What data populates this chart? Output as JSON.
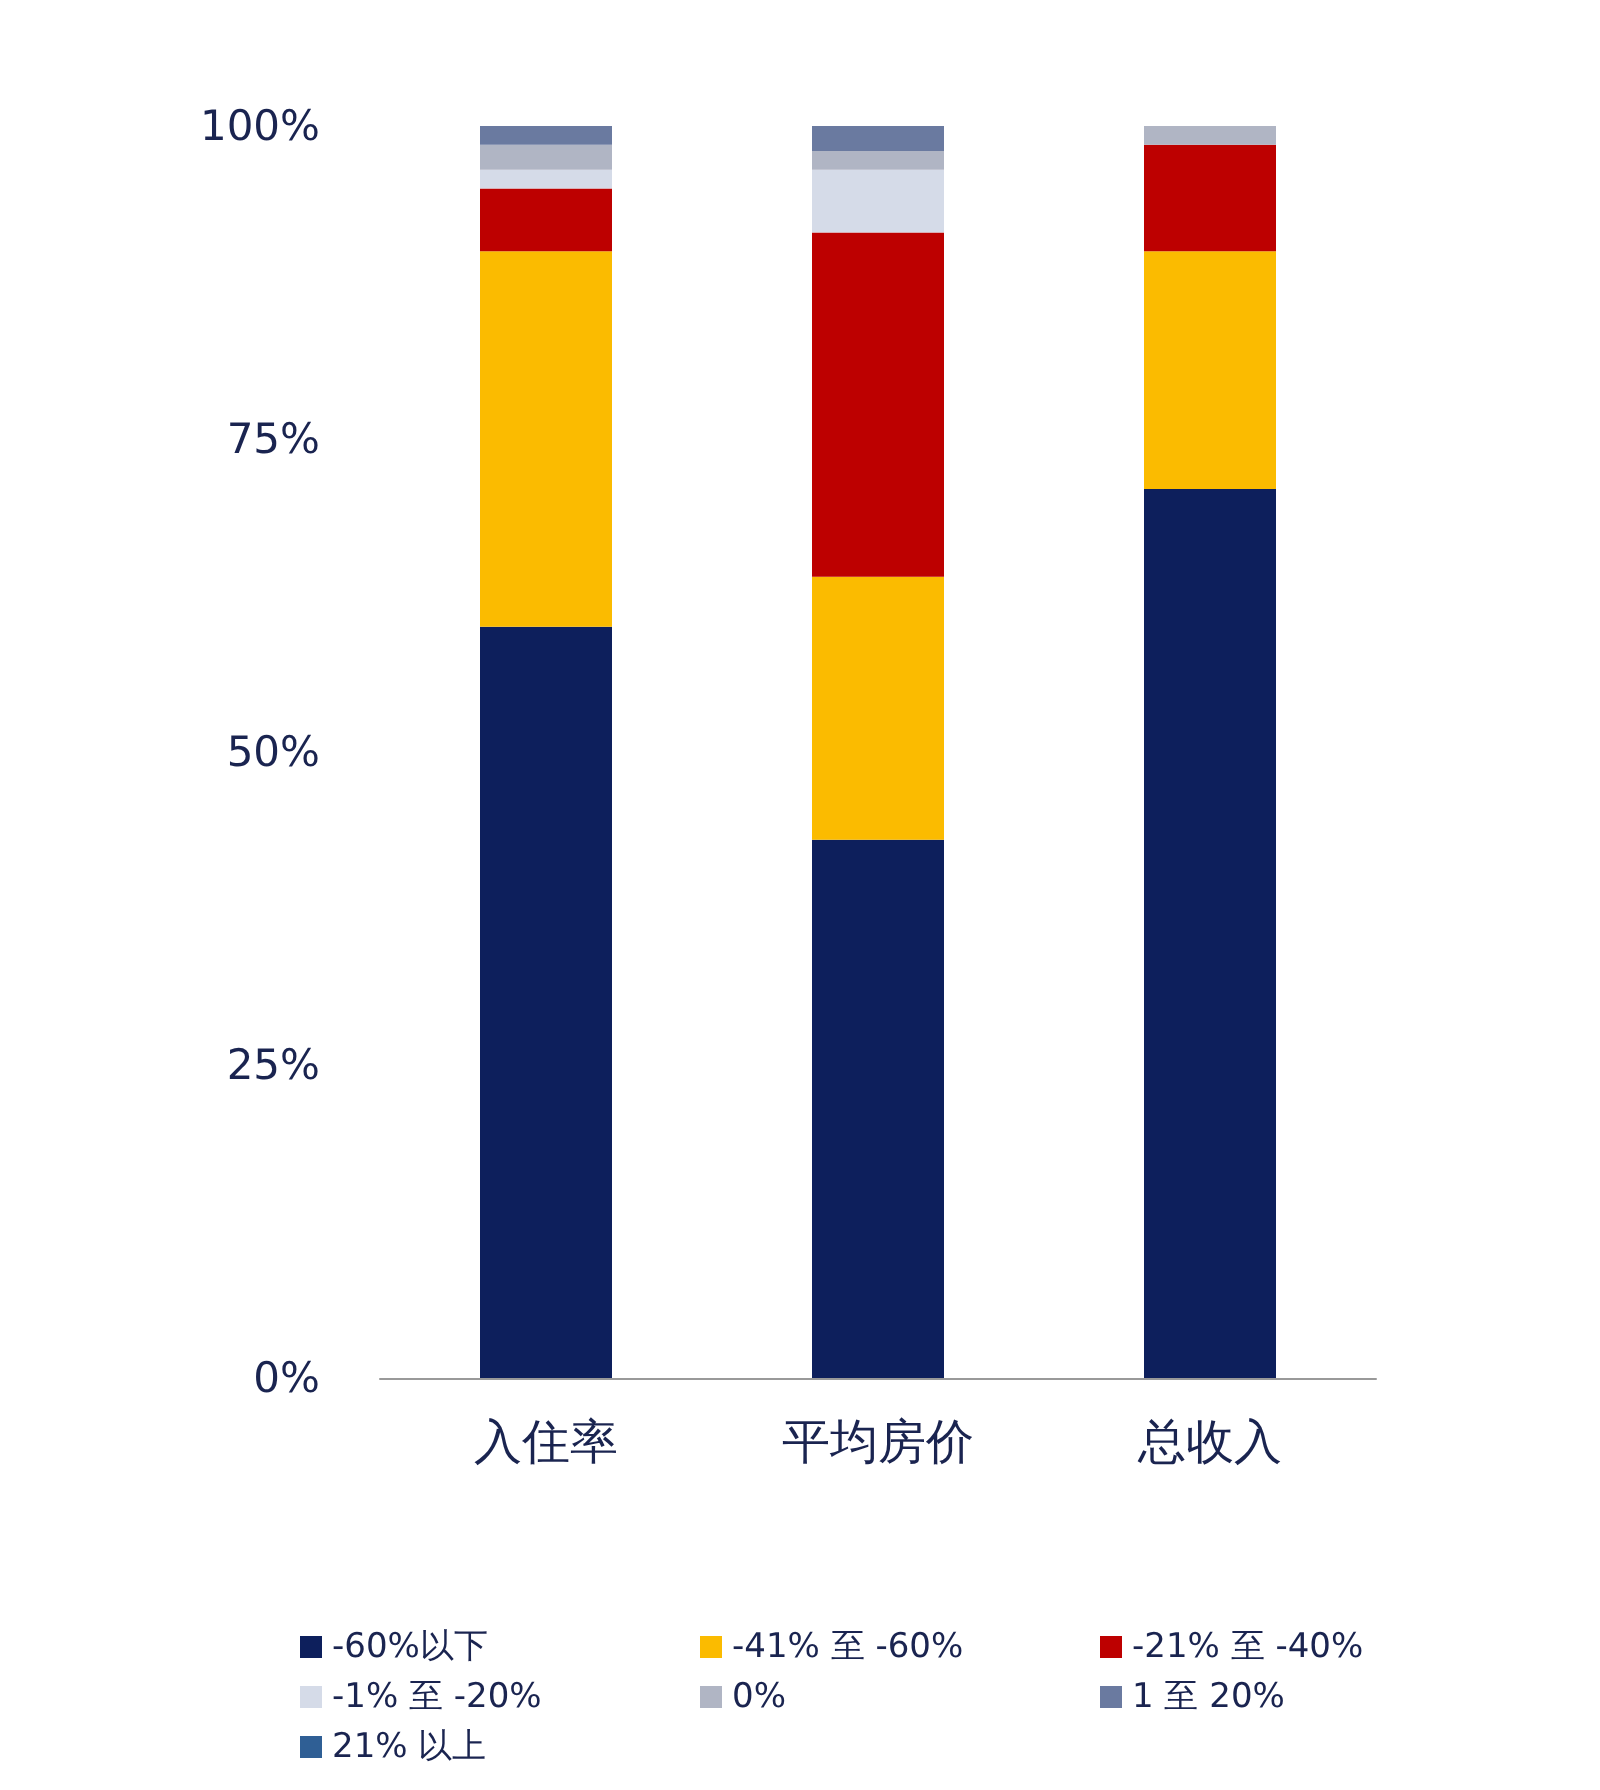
{
  "chart_data": {
    "type": "bar",
    "stacked": true,
    "categories": [
      "入住率",
      "平均房价",
      "总收入"
    ],
    "series": [
      {
        "name": "-60%以下",
        "color": "#0d1f5c",
        "values": [
          60,
          43,
          71
        ]
      },
      {
        "name": "-41% 至 -60%",
        "color": "#fbbb00",
        "values": [
          30,
          21,
          19
        ]
      },
      {
        "name": "-21% 至 -40%",
        "color": "#bd0000",
        "values": [
          5,
          27.5,
          8.5
        ]
      },
      {
        "name": "-1% 至 -20%",
        "color": "#d5dbe8",
        "values": [
          1.5,
          5,
          0
        ]
      },
      {
        "name": "0%",
        "color": "#b0b5c4",
        "values": [
          2,
          1.5,
          1.5
        ]
      },
      {
        "name": "1 至 20%",
        "color": "#6a7aa0",
        "values": [
          1.5,
          2,
          0
        ]
      },
      {
        "name": "21% 以上",
        "color": "#2f5f95",
        "values": [
          0,
          0,
          0
        ]
      }
    ],
    "ylim": [
      0,
      100
    ],
    "yticks": [
      {
        "value": 0,
        "label": "0%"
      },
      {
        "value": 25,
        "label": "25%"
      },
      {
        "value": 50,
        "label": "50%"
      },
      {
        "value": 75,
        "label": "75%"
      },
      {
        "value": 100,
        "label": "100%"
      }
    ],
    "grid": false,
    "legend": "bottom"
  }
}
